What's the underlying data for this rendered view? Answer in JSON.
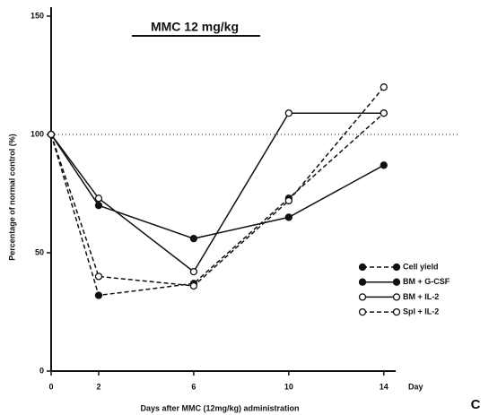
{
  "chart_data": {
    "type": "line",
    "title": "MMC  12 mg/kg",
    "panel_label": "C",
    "x_label": "Days after MMC (12mg/kg) administration",
    "x_unit": "Day",
    "y_label": "Percentage of normal control (%)",
    "x": [
      0,
      2,
      6,
      10,
      14
    ],
    "series": [
      {
        "name": "Cell yield",
        "color": "#111111",
        "marker": "filled",
        "dashed": true,
        "values": [
          100,
          32,
          37,
          73,
          109
        ]
      },
      {
        "name": "BM + G-CSF",
        "color": "#111111",
        "marker": "filled",
        "dashed": false,
        "values": [
          100,
          70,
          56,
          65,
          87
        ]
      },
      {
        "name": "BM + IL-2",
        "color": "#111111",
        "marker": "open",
        "dashed": false,
        "values": [
          100,
          73,
          42,
          109,
          109
        ]
      },
      {
        "name": "Spl + IL-2",
        "color": "#111111",
        "marker": "open",
        "dashed": true,
        "values": [
          100,
          40,
          36,
          72,
          120
        ]
      }
    ],
    "xlim": [
      0,
      14.5
    ],
    "xticks": [
      0,
      2,
      6,
      10,
      14
    ],
    "ylim": [
      0,
      150
    ],
    "yticks": [
      0,
      50,
      100,
      150
    ],
    "reference_line": 100,
    "legend": "lower right"
  }
}
